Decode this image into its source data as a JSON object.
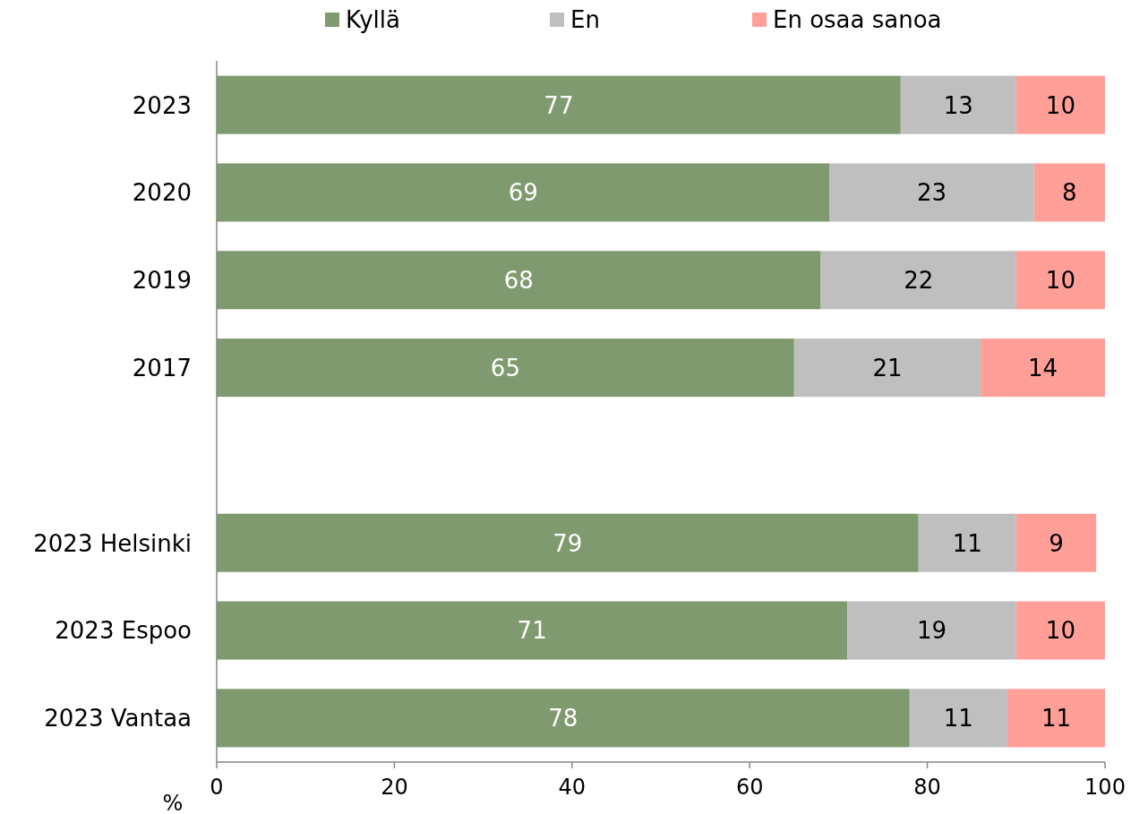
{
  "chart_data": {
    "type": "bar",
    "orientation": "horizontal",
    "stacked": true,
    "xlabel": "%",
    "categories": [
      "2023",
      "2020",
      "2019",
      "2017",
      null,
      "2023 Helsinki",
      "2023 Espoo",
      "2023 Vantaa"
    ],
    "series": [
      {
        "name": "Kyllä",
        "color": "#7f9a6e",
        "values": [
          77,
          69,
          68,
          65,
          null,
          79,
          71,
          78
        ]
      },
      {
        "name": "En",
        "color": "#bfbfbf",
        "values": [
          13,
          23,
          22,
          21,
          null,
          11,
          19,
          11
        ]
      },
      {
        "name": "En osaa sanoa",
        "color": "#ff9f98",
        "values": [
          10,
          8,
          10,
          14,
          null,
          9,
          10,
          11
        ]
      }
    ],
    "xlim": [
      0,
      100
    ],
    "xticks": [
      0,
      20,
      40,
      60,
      80,
      100
    ],
    "data_labels": true,
    "legend": "top",
    "grid": false
  }
}
